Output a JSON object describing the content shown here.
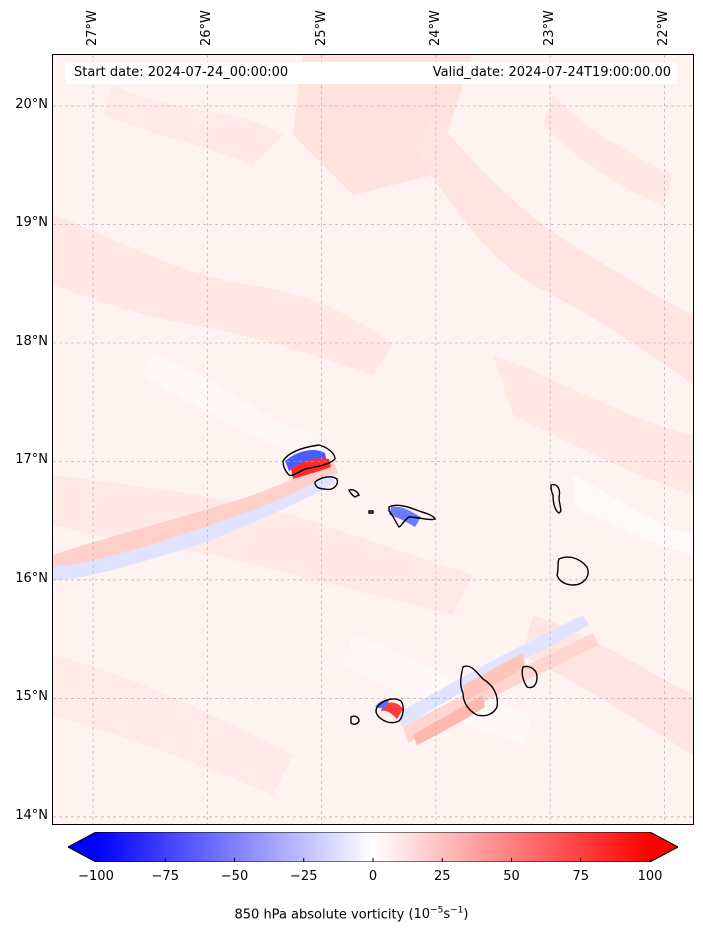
{
  "map": {
    "start_date": "Start date: 2024-07-24_00:00:00",
    "valid_date": "Valid_date: 2024-07-24T19:00:00.00",
    "lon_labels": [
      "27°W",
      "26°W",
      "25°W",
      "24°W",
      "23°W",
      "22°W"
    ],
    "lat_labels": [
      "20°N",
      "19°N",
      "18°N",
      "17°N",
      "16°N",
      "15°N",
      "14°N"
    ],
    "lon_values": [
      -27,
      -26,
      -25,
      -24,
      -23,
      -22
    ],
    "lat_values": [
      20,
      19,
      18,
      17,
      16,
      15,
      14
    ],
    "lon_range": [
      -27.35,
      -21.75
    ],
    "lat_range": [
      13.94,
      20.43
    ],
    "gridlines": true
  },
  "colorbar": {
    "label": "850 hPa absolute vorticity",
    "unit_prefix": "(10",
    "unit_exp1": "−5",
    "unit_mid": "s",
    "unit_exp2": "−1",
    "unit_suffix": ")",
    "tick_labels": [
      "−100",
      "−75",
      "−50",
      "−25",
      "0",
      "25",
      "50",
      "75",
      "100"
    ],
    "tick_values": [
      -100,
      -75,
      -50,
      -25,
      0,
      25,
      50,
      75,
      100
    ],
    "range": [
      -100,
      100
    ],
    "extend": "both",
    "colors": {
      "negative": "#0000ff",
      "zero": "#ffffff",
      "positive": "#ff0000"
    }
  }
}
